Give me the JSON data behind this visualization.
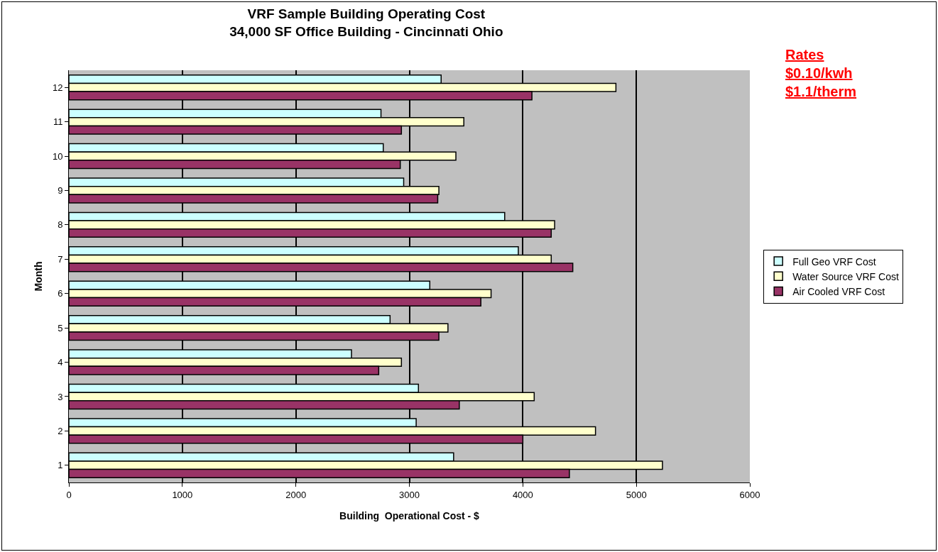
{
  "chart_data": {
    "type": "bar",
    "orientation": "horizontal",
    "title": "VRF Sample Building Operating Cost\n34,000 SF Office Building - Cincinnati Ohio",
    "xlabel": "Building  Operational Cost - $",
    "ylabel": "Month",
    "categories": [
      "12",
      "11",
      "10",
      "9",
      "8",
      "7",
      "6",
      "5",
      "4",
      "3",
      "2",
      "1"
    ],
    "series": [
      {
        "name": "Full Geo VRF Cost",
        "color": "#ccffff",
        "values": [
          3280,
          2750,
          2770,
          2950,
          3840,
          3960,
          3180,
          2830,
          2490,
          3080,
          3060,
          3390
        ]
      },
      {
        "name": "Water Source VRF Cost",
        "color": "#ffffcc",
        "values": [
          4820,
          3480,
          3410,
          3260,
          4280,
          4250,
          3720,
          3340,
          2930,
          4100,
          4640,
          5230
        ]
      },
      {
        "name": "Air Cooled VRF Cost",
        "color": "#993366",
        "values": [
          4080,
          2930,
          2920,
          3250,
          4250,
          4440,
          3630,
          3260,
          2730,
          3440,
          4000,
          4410
        ]
      }
    ],
    "xlim": [
      0,
      6000
    ],
    "xticks": [
      0,
      1000,
      2000,
      3000,
      4000,
      5000,
      6000
    ],
    "grid": "x",
    "legend": "right",
    "annotations": [
      "Rates",
      "$0.10/kwh",
      "$1.1/therm"
    ]
  }
}
